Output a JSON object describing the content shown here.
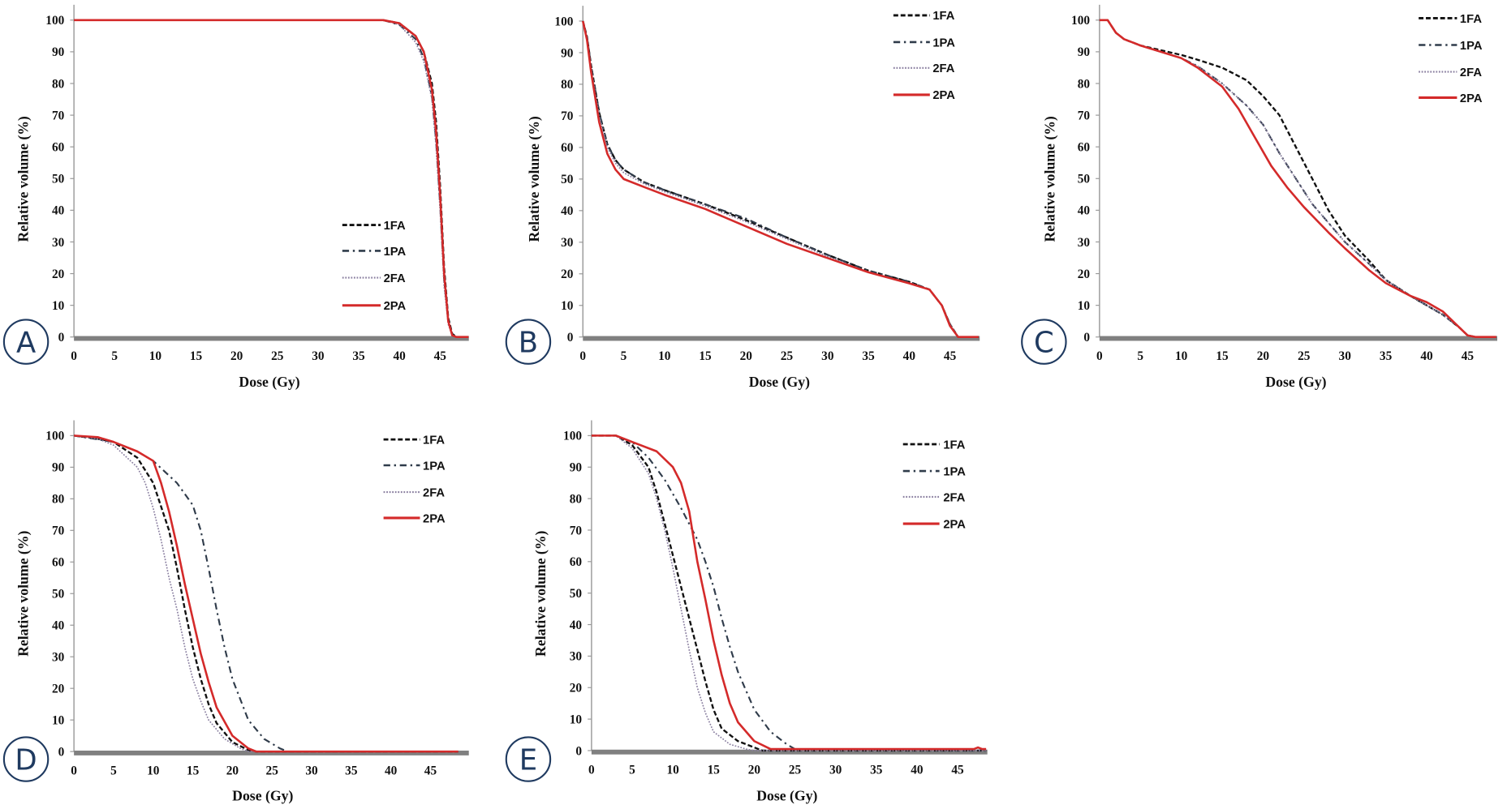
{
  "colors": {
    "1FA": "#111111",
    "1PA": "#2f3b4a",
    "2FA": "#8a7fa0",
    "2PA": "#d42a2a",
    "panel_letter": "#1f3a60",
    "baseline": "#808080"
  },
  "chart_data": [
    {
      "panel": "A",
      "type": "line",
      "xlabel": "Dose (Gy)",
      "ylabel": "Relative volume (%)",
      "xlim": [
        0,
        48.5
      ],
      "ylim": [
        0,
        100
      ],
      "xticks": [
        0,
        5,
        10,
        15,
        20,
        25,
        30,
        35,
        40,
        45
      ],
      "yticks": [
        0,
        10,
        20,
        30,
        40,
        50,
        60,
        70,
        80,
        90,
        100
      ],
      "legend": "bottom-right",
      "grid": false,
      "series": [
        {
          "name": "1FA",
          "style": "dashed",
          "x": [
            0,
            38,
            40,
            42,
            43,
            44,
            44.5,
            45,
            45.5,
            46,
            46.5,
            47,
            48.5
          ],
          "y": [
            100,
            100,
            99,
            95,
            90,
            80,
            68,
            48,
            22,
            6,
            1,
            0,
            0
          ]
        },
        {
          "name": "1PA",
          "style": "dashdot",
          "x": [
            0,
            38,
            40,
            42,
            43,
            44,
            44.5,
            45,
            45.5,
            46,
            46.5,
            47,
            48.5
          ],
          "y": [
            100,
            100,
            98.5,
            94,
            88,
            76,
            62,
            42,
            18,
            5,
            0.8,
            0,
            0
          ]
        },
        {
          "name": "2FA",
          "style": "dotted",
          "x": [
            0,
            38,
            40,
            42,
            43,
            44,
            44.5,
            45,
            45.5,
            46,
            46.5,
            47,
            48.5
          ],
          "y": [
            100,
            100,
            98.5,
            93,
            87,
            75,
            60,
            40,
            16,
            4,
            0.5,
            0,
            0
          ]
        },
        {
          "name": "2PA",
          "style": "solid",
          "x": [
            0,
            38,
            40,
            42,
            43,
            44,
            44.5,
            45,
            45.5,
            46,
            46.5,
            47,
            48.5
          ],
          "y": [
            100,
            100,
            99,
            95,
            90,
            78,
            65,
            45,
            20,
            5,
            0.5,
            0,
            0
          ]
        }
      ]
    },
    {
      "panel": "B",
      "type": "line",
      "xlabel": "Dose (Gy)",
      "ylabel": "Relative volume (%)",
      "xlim": [
        0,
        48.5
      ],
      "ylim": [
        0,
        100
      ],
      "xticks": [
        0,
        5,
        10,
        15,
        20,
        25,
        30,
        35,
        40,
        45
      ],
      "yticks": [
        0,
        10,
        20,
        30,
        40,
        50,
        60,
        70,
        80,
        90,
        100
      ],
      "legend": "top-right",
      "grid": false,
      "series": [
        {
          "name": "1FA",
          "style": "dashed",
          "x": [
            0,
            0.5,
            1,
            2,
            3,
            4,
            5,
            7.5,
            10,
            15,
            20,
            25,
            30,
            35,
            40,
            42.5,
            44,
            45,
            46,
            48.5
          ],
          "y": [
            100,
            95,
            86,
            71,
            61,
            56,
            53,
            49,
            46.5,
            42,
            37,
            31.5,
            26,
            21,
            17.5,
            15,
            10,
            4,
            0,
            0
          ]
        },
        {
          "name": "1PA",
          "style": "dashdot",
          "x": [
            0,
            0.5,
            1,
            2,
            3,
            4,
            5,
            7.5,
            10,
            15,
            20,
            25,
            30,
            35,
            40,
            42.5,
            44,
            45,
            46,
            48.5
          ],
          "y": [
            100,
            95,
            86,
            71,
            61,
            56,
            53,
            49,
            46.5,
            42,
            37.5,
            31.5,
            26,
            21,
            17.5,
            15,
            10,
            4,
            0,
            0
          ]
        },
        {
          "name": "2FA",
          "style": "dotted",
          "x": [
            0,
            0.5,
            1,
            2,
            3,
            4,
            5,
            7.5,
            10,
            15,
            20,
            25,
            30,
            35,
            40,
            42.5,
            44,
            45,
            46,
            48.5
          ],
          "y": [
            100,
            95,
            85,
            70,
            60,
            55,
            52,
            48.5,
            46,
            41.5,
            36.5,
            31,
            25.5,
            20.5,
            17,
            15,
            10,
            4,
            0,
            0
          ]
        },
        {
          "name": "2PA",
          "style": "solid",
          "x": [
            0,
            0.5,
            1,
            2,
            3,
            4,
            5,
            7.5,
            10,
            15,
            20,
            25,
            30,
            35,
            40,
            42.5,
            44,
            45,
            46,
            48.5
          ],
          "y": [
            100,
            94,
            84,
            68,
            58,
            53,
            50,
            47.5,
            45,
            40.5,
            35,
            29.5,
            25,
            20.5,
            17,
            15,
            10,
            3.5,
            0,
            0
          ]
        }
      ]
    },
    {
      "panel": "C",
      "type": "line",
      "xlabel": "Dose (Gy)",
      "ylabel": "Relative volume (%)",
      "xlim": [
        0,
        48.5
      ],
      "ylim": [
        0,
        100
      ],
      "xticks": [
        0,
        5,
        10,
        15,
        20,
        25,
        30,
        35,
        40,
        45
      ],
      "yticks": [
        0,
        10,
        20,
        30,
        40,
        50,
        60,
        70,
        80,
        90,
        100
      ],
      "legend": "top-right",
      "grid": false,
      "series": [
        {
          "name": "1FA",
          "style": "dashed",
          "x": [
            0,
            1,
            2,
            3,
            5,
            10,
            12,
            15,
            18,
            20,
            22,
            24,
            26,
            28,
            30,
            33,
            35,
            38,
            40,
            42,
            44,
            45,
            46,
            48.5
          ],
          "y": [
            100,
            100,
            96,
            94,
            92,
            89,
            87.5,
            85,
            81,
            76,
            70,
            60,
            50,
            40,
            32,
            24,
            18,
            13,
            10,
            7,
            3,
            0.5,
            0,
            0
          ]
        },
        {
          "name": "1PA",
          "style": "dashdot",
          "x": [
            0,
            1,
            2,
            3,
            5,
            10,
            12,
            15,
            18,
            20,
            22,
            24,
            26,
            28,
            30,
            33,
            35,
            38,
            40,
            42,
            44,
            45,
            46,
            48.5
          ],
          "y": [
            100,
            100,
            96,
            94,
            92,
            88,
            85.5,
            80,
            73,
            67,
            58,
            50,
            42,
            36,
            30,
            23,
            18,
            13,
            10,
            7,
            3,
            0.5,
            0,
            0
          ]
        },
        {
          "name": "2FA",
          "style": "dotted",
          "x": [
            0,
            1,
            2,
            3,
            5,
            10,
            12,
            15,
            18,
            20,
            22,
            24,
            26,
            28,
            30,
            33,
            35,
            38,
            40,
            42,
            44,
            45,
            46,
            48.5
          ],
          "y": [
            100,
            100,
            96,
            94,
            92,
            88,
            85.5,
            80,
            73,
            67,
            58,
            50,
            42,
            36,
            30,
            23,
            18,
            13,
            10,
            7,
            3,
            0.5,
            0,
            0
          ]
        },
        {
          "name": "2PA",
          "style": "solid",
          "x": [
            0,
            1,
            2,
            3,
            5,
            10,
            12,
            15,
            17,
            19,
            21,
            23,
            25,
            28,
            30,
            33,
            35,
            38,
            40,
            42,
            44,
            45,
            46,
            48.5
          ],
          "y": [
            100,
            100,
            96,
            94,
            92,
            88,
            85,
            79,
            72,
            63,
            54,
            47,
            41,
            33,
            28,
            21,
            17,
            13,
            11,
            8,
            3,
            0.5,
            0,
            0
          ]
        }
      ]
    },
    {
      "panel": "D",
      "type": "line",
      "xlabel": "Dose (Gy)",
      "ylabel": "Relative volume (%)",
      "xlim": [
        0,
        48.5
      ],
      "ylim": [
        0,
        100
      ],
      "xticks": [
        0,
        5,
        10,
        15,
        20,
        25,
        30,
        35,
        40,
        45
      ],
      "yticks": [
        0,
        10,
        20,
        30,
        40,
        50,
        60,
        70,
        80,
        90,
        100
      ],
      "legend": "top-right",
      "grid": false,
      "series": [
        {
          "name": "1FA",
          "style": "dashed",
          "x": [
            0,
            3,
            5,
            8,
            10,
            12,
            13,
            14,
            15,
            16,
            17,
            18,
            20,
            22,
            23,
            48.5
          ],
          "y": [
            100,
            99,
            98,
            93,
            85,
            70,
            58,
            45,
            33,
            23,
            15,
            9,
            3,
            0.5,
            0,
            0
          ]
        },
        {
          "name": "1PA",
          "style": "dashdot",
          "x": [
            0,
            5,
            8,
            10,
            13,
            15,
            16,
            17,
            18,
            19,
            20,
            22,
            24,
            26,
            27,
            48.5
          ],
          "y": [
            100,
            98,
            95,
            92,
            85,
            78,
            70,
            58,
            45,
            33,
            23,
            10,
            4,
            1,
            0,
            0
          ]
        },
        {
          "name": "2FA",
          "style": "dotted",
          "x": [
            0,
            3,
            5,
            8,
            9,
            10,
            11,
            12,
            13,
            14,
            15,
            16,
            17,
            19,
            21,
            22,
            48.5
          ],
          "y": [
            100,
            99,
            97,
            90,
            85,
            77,
            67,
            55,
            45,
            33,
            23,
            16,
            10,
            4,
            1,
            0,
            0
          ]
        },
        {
          "name": "2PA",
          "style": "solid",
          "x": [
            0,
            3,
            5,
            8,
            10,
            11,
            12,
            13,
            14,
            15,
            16,
            17,
            18,
            20,
            22,
            23,
            48.5
          ],
          "y": [
            100,
            99.5,
            98,
            95,
            92,
            85,
            76,
            65,
            53,
            42,
            31,
            22,
            14,
            5,
            1,
            0,
            0
          ]
        }
      ]
    },
    {
      "panel": "E",
      "type": "line",
      "xlabel": "Dose (Gy)",
      "ylabel": "Relative volume (%)",
      "xlim": [
        0,
        48.5
      ],
      "ylim": [
        0,
        100
      ],
      "xticks": [
        0,
        5,
        10,
        15,
        20,
        25,
        30,
        35,
        40,
        45
      ],
      "yticks": [
        0,
        10,
        20,
        30,
        40,
        50,
        60,
        70,
        80,
        90,
        100
      ],
      "legend": "top-right",
      "grid": false,
      "series": [
        {
          "name": "1FA",
          "style": "dashed",
          "x": [
            0,
            3,
            5,
            7,
            8,
            9,
            10,
            11,
            12,
            13,
            14,
            15,
            16,
            18,
            20,
            21,
            48.5
          ],
          "y": [
            100,
            100,
            97,
            90,
            82,
            72,
            62,
            52,
            42,
            32,
            22,
            13,
            7,
            3,
            1,
            0,
            0
          ]
        },
        {
          "name": "1PA",
          "style": "dashdot",
          "x": [
            0,
            3,
            5,
            7,
            9,
            11,
            13,
            14,
            15,
            16,
            17,
            18,
            20,
            22,
            24,
            25,
            48.5
          ],
          "y": [
            100,
            100,
            98,
            93,
            86,
            77,
            67,
            60,
            52,
            42,
            33,
            25,
            13,
            6,
            2,
            0.5,
            0
          ]
        },
        {
          "name": "2FA",
          "style": "dotted",
          "x": [
            0,
            3,
            5,
            7,
            8,
            9,
            10,
            11,
            12,
            13,
            14,
            15,
            17,
            19,
            20,
            48.5
          ],
          "y": [
            100,
            100,
            96,
            88,
            80,
            70,
            58,
            45,
            32,
            20,
            12,
            6,
            2,
            0.5,
            0,
            0
          ]
        },
        {
          "name": "2PA",
          "style": "solid",
          "x": [
            0,
            3,
            5,
            8,
            10,
            11,
            12,
            13,
            14,
            15,
            16,
            17,
            18,
            20,
            22,
            47,
            47.5,
            48,
            48.5
          ],
          "y": [
            100,
            100,
            98,
            95,
            90,
            85,
            76,
            60,
            48,
            35,
            24,
            15,
            9,
            3,
            0.5,
            0.5,
            1,
            0.5,
            0.5
          ]
        }
      ]
    }
  ]
}
